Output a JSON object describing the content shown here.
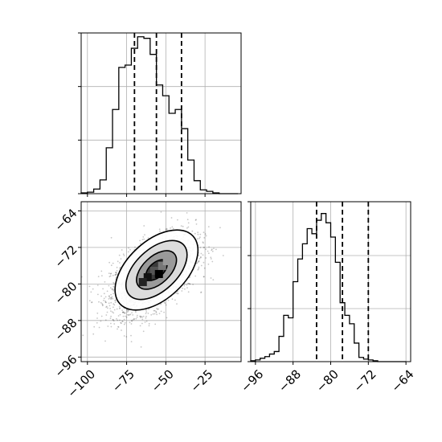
{
  "chart_data": {
    "type": "corner",
    "params": [
      "x",
      "y"
    ],
    "quantile_lines": {
      "x": [
        -70,
        -56,
        -40
      ],
      "y": [
        -83,
        -77.5,
        -72
      ]
    },
    "histogram_x": {
      "range": [
        -104,
        -2
      ],
      "bin_edges": [
        -104,
        -100,
        -96,
        -92,
        -88,
        -84,
        -80,
        -76,
        -72,
        -68,
        -64,
        -60,
        -56,
        -52,
        -48,
        -44,
        -40,
        -36,
        -32,
        -28,
        -24,
        -20,
        -16,
        -12,
        -8,
        -4
      ],
      "counts": [
        1,
        2,
        6,
        18,
        60,
        110,
        165,
        168,
        190,
        205,
        203,
        182,
        142,
        128,
        105,
        110,
        85,
        44,
        17,
        5,
        3,
        1,
        0,
        0,
        0
      ]
    },
    "histogram_y": {
      "range": [
        -97,
        -63
      ],
      "bin_edges": [
        -97,
        -96,
        -95,
        -94,
        -93,
        -92,
        -91,
        -90,
        -89,
        -88,
        -87,
        -86,
        -85,
        -84,
        -83,
        -82,
        -81,
        -80,
        -79,
        -78,
        -77,
        -76,
        -75,
        -74,
        -73,
        -72,
        -71,
        -70,
        -69,
        -68,
        -67,
        -66,
        -65,
        -64
      ],
      "counts": [
        1,
        2,
        4,
        6,
        9,
        12,
        30,
        55,
        52,
        95,
        122,
        140,
        158,
        152,
        168,
        176,
        165,
        148,
        118,
        70,
        55,
        45,
        22,
        5,
        3,
        2,
        1,
        0,
        0,
        0,
        0,
        0,
        0
      ]
    },
    "scatter_2d": {
      "xlim": [
        -104,
        -2
      ],
      "ylim": [
        -97,
        -62
      ],
      "density_peak": [
        -58,
        -78
      ],
      "contour_levels": [
        "0.5 sigma",
        "1 sigma",
        "1.5 sigma",
        "2 sigma"
      ],
      "x_ticks": [
        -100,
        -75,
        -50,
        -25
      ],
      "y_ticks": [
        -64,
        -72,
        -80,
        -88,
        -96
      ]
    },
    "axes": {
      "x_tick_labels": [
        "−100",
        "−75",
        "−50",
        "−25"
      ],
      "y_tick_labels": [
        "−64",
        "−72",
        "−80",
        "−88",
        "−96"
      ],
      "y_hist_tick_labels": [
        "−96",
        "−88",
        "−80",
        "−72",
        "−64"
      ],
      "y_hist_ticks": [
        -96,
        -88,
        -80,
        -72,
        -64
      ]
    },
    "grid": true,
    "legend": "none"
  }
}
